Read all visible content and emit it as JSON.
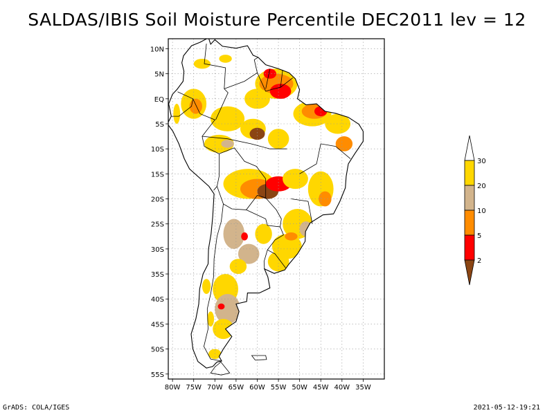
{
  "title": "SALDAS/IBIS Soil Moisture Percentile DEC2011 lev = 12",
  "footer": {
    "left": "GrADS: COLA/IGES",
    "right": "2021-05-12-19:21"
  },
  "map": {
    "region": "South America",
    "lon_range": [
      -81,
      -30
    ],
    "lat_range": [
      -56,
      12
    ],
    "lon_ticks": [
      {
        "value": -80,
        "label": "80W"
      },
      {
        "value": -75,
        "label": "75W"
      },
      {
        "value": -70,
        "label": "70W"
      },
      {
        "value": -65,
        "label": "65W"
      },
      {
        "value": -60,
        "label": "60W"
      },
      {
        "value": -55,
        "label": "55W"
      },
      {
        "value": -50,
        "label": "50W"
      },
      {
        "value": -45,
        "label": "45W"
      },
      {
        "value": -40,
        "label": "40W"
      },
      {
        "value": -35,
        "label": "35W"
      }
    ],
    "lat_ticks": [
      {
        "value": 10,
        "label": "10N"
      },
      {
        "value": 5,
        "label": "5N"
      },
      {
        "value": 0,
        "label": "EQ"
      },
      {
        "value": -5,
        "label": "5S"
      },
      {
        "value": -10,
        "label": "10S"
      },
      {
        "value": -15,
        "label": "15S"
      },
      {
        "value": -20,
        "label": "20S"
      },
      {
        "value": -25,
        "label": "25S"
      },
      {
        "value": -30,
        "label": "30S"
      },
      {
        "value": -35,
        "label": "35S"
      },
      {
        "value": -40,
        "label": "40S"
      },
      {
        "value": -45,
        "label": "45S"
      },
      {
        "value": -50,
        "label": "50S"
      },
      {
        "value": -55,
        "label": "55S"
      }
    ],
    "grid": "dotted"
  },
  "legend": {
    "bins": [
      {
        "range": "below 2",
        "color": "#8b4513"
      },
      {
        "range": "2-5",
        "color": "#ff0000"
      },
      {
        "range": "5-10",
        "color": "#ff8c00"
      },
      {
        "range": "10-20",
        "color": "#d2b48c"
      },
      {
        "range": "20-30",
        "color": "#ffd700"
      },
      {
        "range": "above 30",
        "color": "#ffffff"
      }
    ],
    "labels": [
      "2",
      "5",
      "10",
      "20",
      "30"
    ]
  },
  "patches": [
    {
      "lon": -55.5,
      "lat": 3.0,
      "rx": 5.0,
      "ry": 3.0,
      "color": "#ffd700"
    },
    {
      "lon": -55.5,
      "lat": 3.0,
      "rx": 4.0,
      "ry": 2.0,
      "color": "#ff8c00"
    },
    {
      "lon": -54.5,
      "lat": 1.5,
      "rx": 2.5,
      "ry": 1.5,
      "color": "#ff0000"
    },
    {
      "lon": -57.0,
      "lat": 5.0,
      "rx": 1.5,
      "ry": 1.0,
      "color": "#ff0000"
    },
    {
      "lon": -60.0,
      "lat": 0.0,
      "rx": 3.0,
      "ry": 2.0,
      "color": "#ffd700"
    },
    {
      "lon": -47.0,
      "lat": -3.0,
      "rx": 4.5,
      "ry": 2.5,
      "color": "#ffd700"
    },
    {
      "lon": -46.5,
      "lat": -2.5,
      "rx": 3.0,
      "ry": 1.5,
      "color": "#ff8c00"
    },
    {
      "lon": -45.0,
      "lat": -2.5,
      "rx": 1.5,
      "ry": 1.0,
      "color": "#ff0000"
    },
    {
      "lon": -41.0,
      "lat": -5.0,
      "rx": 3.0,
      "ry": 2.0,
      "color": "#ffd700"
    },
    {
      "lon": -39.5,
      "lat": -9.0,
      "rx": 2.0,
      "ry": 1.5,
      "color": "#ff8c00"
    },
    {
      "lon": -75.0,
      "lat": -1.0,
      "rx": 3.0,
      "ry": 3.0,
      "color": "#ffd700"
    },
    {
      "lon": -74.5,
      "lat": -1.5,
      "rx": 1.5,
      "ry": 1.5,
      "color": "#ff8c00"
    },
    {
      "lon": -67.0,
      "lat": -4.0,
      "rx": 4.0,
      "ry": 2.5,
      "color": "#ffd700"
    },
    {
      "lon": -61.0,
      "lat": -6.0,
      "rx": 3.0,
      "ry": 2.0,
      "color": "#ffd700"
    },
    {
      "lon": -60.0,
      "lat": -7.0,
      "rx": 1.8,
      "ry": 1.2,
      "color": "#8b4513"
    },
    {
      "lon": -69.0,
      "lat": -9.0,
      "rx": 3.5,
      "ry": 1.8,
      "color": "#ffd700"
    },
    {
      "lon": -67.0,
      "lat": -9.0,
      "rx": 1.5,
      "ry": 0.8,
      "color": "#d2b48c"
    },
    {
      "lon": -55.0,
      "lat": -8.0,
      "rx": 2.5,
      "ry": 2.0,
      "color": "#ffd700"
    },
    {
      "lon": -62.0,
      "lat": -17.0,
      "rx": 6.0,
      "ry": 3.0,
      "color": "#ffd700"
    },
    {
      "lon": -60.0,
      "lat": -18.0,
      "rx": 4.0,
      "ry": 2.0,
      "color": "#ff8c00"
    },
    {
      "lon": -57.5,
      "lat": -18.5,
      "rx": 2.5,
      "ry": 1.5,
      "color": "#8b4513"
    },
    {
      "lon": -55.0,
      "lat": -17.0,
      "rx": 3.0,
      "ry": 1.5,
      "color": "#ff0000"
    },
    {
      "lon": -51.0,
      "lat": -16.0,
      "rx": 3.0,
      "ry": 2.0,
      "color": "#ffd700"
    },
    {
      "lon": -45.0,
      "lat": -18.0,
      "rx": 3.0,
      "ry": 3.5,
      "color": "#ffd700"
    },
    {
      "lon": -44.0,
      "lat": -20.0,
      "rx": 1.5,
      "ry": 1.5,
      "color": "#ff8c00"
    },
    {
      "lon": -50.5,
      "lat": -25.0,
      "rx": 3.5,
      "ry": 3.0,
      "color": "#ffd700"
    },
    {
      "lon": -48.5,
      "lat": -26.0,
      "rx": 1.5,
      "ry": 1.5,
      "color": "#d2b48c"
    },
    {
      "lon": -53.0,
      "lat": -29.5,
      "rx": 3.5,
      "ry": 2.5,
      "color": "#ffd700"
    },
    {
      "lon": -55.0,
      "lat": -32.5,
      "rx": 2.5,
      "ry": 2.0,
      "color": "#ffd700"
    },
    {
      "lon": -58.5,
      "lat": -27.0,
      "rx": 2.0,
      "ry": 2.0,
      "color": "#ffd700"
    },
    {
      "lon": -65.5,
      "lat": -27.0,
      "rx": 2.5,
      "ry": 3.0,
      "color": "#d2b48c"
    },
    {
      "lon": -62.0,
      "lat": -31.0,
      "rx": 2.5,
      "ry": 2.0,
      "color": "#d2b48c"
    },
    {
      "lon": -64.5,
      "lat": -33.5,
      "rx": 2.0,
      "ry": 1.5,
      "color": "#ffd700"
    },
    {
      "lon": -67.5,
      "lat": -38.0,
      "rx": 3.0,
      "ry": 3.0,
      "color": "#ffd700"
    },
    {
      "lon": -67.0,
      "lat": -42.0,
      "rx": 3.0,
      "ry": 3.0,
      "color": "#d2b48c"
    },
    {
      "lon": -68.0,
      "lat": -46.0,
      "rx": 2.5,
      "ry": 2.0,
      "color": "#ffd700"
    },
    {
      "lon": -71.0,
      "lat": -44.0,
      "rx": 0.8,
      "ry": 1.5,
      "color": "#ffd700"
    },
    {
      "lon": -70.0,
      "lat": -51.0,
      "rx": 1.5,
      "ry": 1.0,
      "color": "#ffd700"
    },
    {
      "lon": -68.5,
      "lat": -41.5,
      "rx": 0.8,
      "ry": 0.6,
      "color": "#ff0000"
    },
    {
      "lon": -72.0,
      "lat": -37.5,
      "rx": 1.0,
      "ry": 1.5,
      "color": "#ffd700"
    },
    {
      "lon": -63.0,
      "lat": -27.5,
      "rx": 0.8,
      "ry": 0.8,
      "color": "#ff0000"
    },
    {
      "lon": -52.0,
      "lat": -27.5,
      "rx": 1.5,
      "ry": 0.8,
      "color": "#ff8c00"
    },
    {
      "lon": -73.0,
      "lat": 7.0,
      "rx": 2.0,
      "ry": 1.0,
      "color": "#ffd700"
    },
    {
      "lon": -67.5,
      "lat": 8.0,
      "rx": 1.5,
      "ry": 0.8,
      "color": "#ffd700"
    },
    {
      "lon": -79.0,
      "lat": -3.0,
      "rx": 0.8,
      "ry": 2.0,
      "color": "#ffd700"
    }
  ]
}
